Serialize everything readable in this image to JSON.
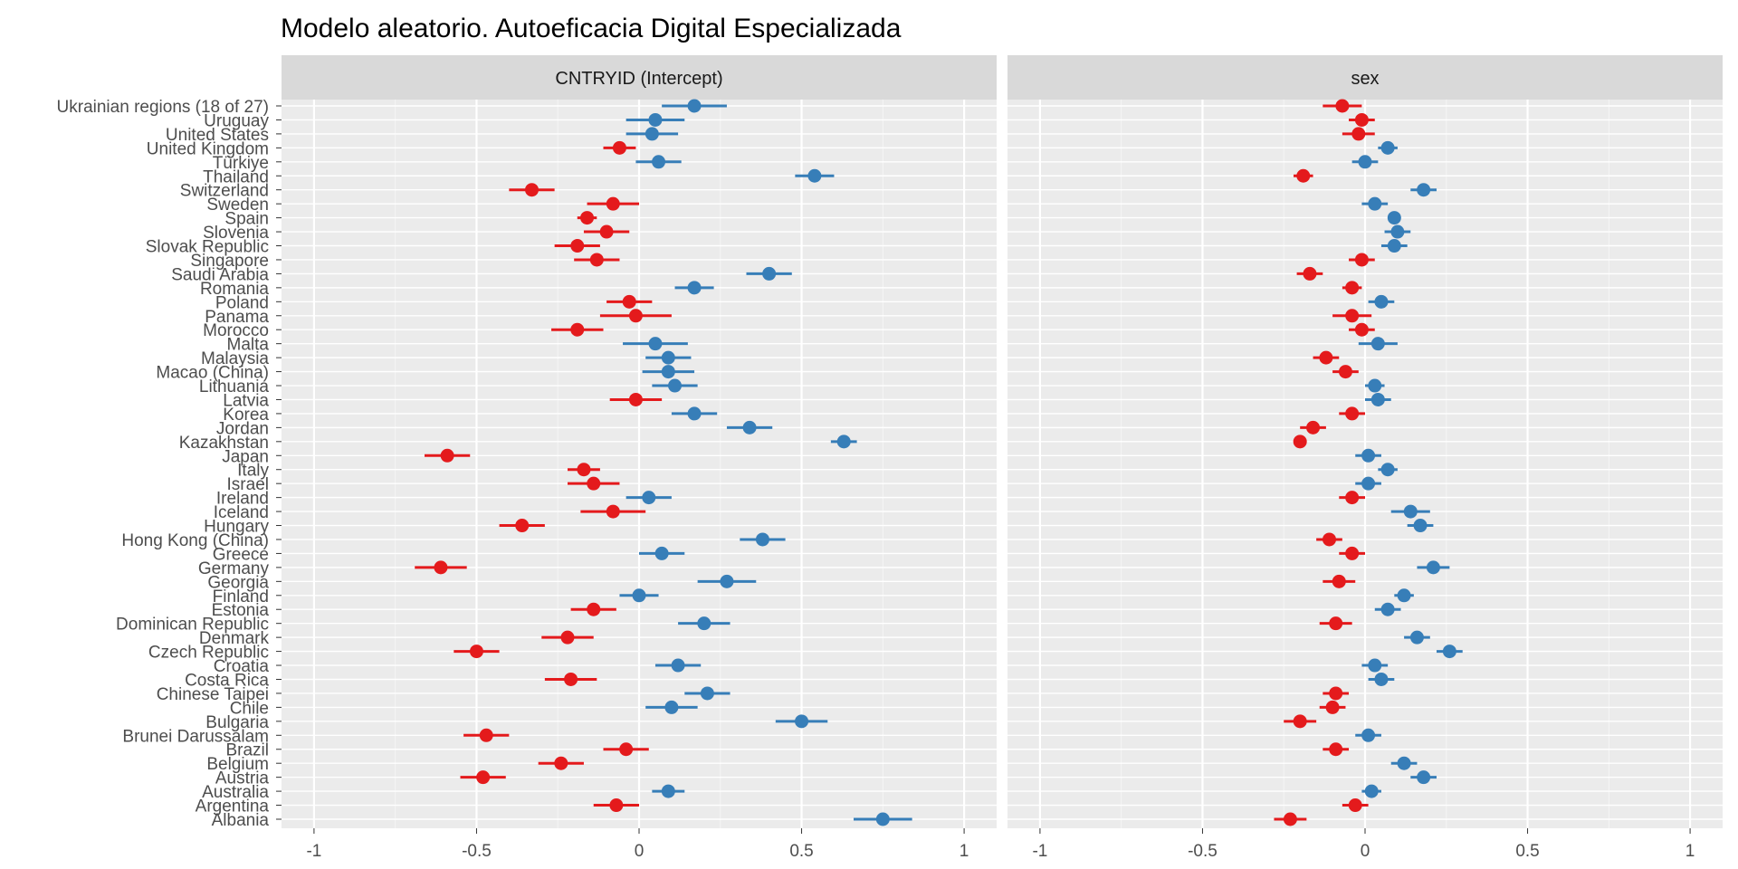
{
  "chart_data": {
    "type": "scatter",
    "title": "Modelo aleatorio. Autoeficacia Digital Especializada",
    "colors": {
      "negative": "#E41A1C",
      "positive": "#377EB8",
      "panel_bg": "#EBEBEB",
      "strip_bg": "#D9D9D9",
      "grid": "#FFFFFF",
      "text": "#4D4D4D"
    },
    "categories": [
      "Ukrainian regions (18 of 27)",
      "Uruguay",
      "United States",
      "United Kingdom",
      "Türkiye",
      "Thailand",
      "Switzerland",
      "Sweden",
      "Spain",
      "Slovenia",
      "Slovak Republic",
      "Singapore",
      "Saudi Arabia",
      "Romania",
      "Poland",
      "Panama",
      "Morocco",
      "Malta",
      "Malaysia",
      "Macao (China)",
      "Lithuania",
      "Latvia",
      "Korea",
      "Jordan",
      "Kazakhstan",
      "Japan",
      "Italy",
      "Israel",
      "Ireland",
      "Iceland",
      "Hungary",
      "Hong Kong (China)",
      "Greece",
      "Germany",
      "Georgia",
      "Finland",
      "Estonia",
      "Dominican Republic",
      "Denmark",
      "Czech Republic",
      "Croatia",
      "Costa Rica",
      "Chinese Taipei",
      "Chile",
      "Bulgaria",
      "Brunei Darussalam",
      "Brazil",
      "Belgium",
      "Austria",
      "Australia",
      "Argentina",
      "Albania"
    ],
    "xlim": [
      -1.1,
      1.1
    ],
    "xticks": [
      "-1",
      "-0.5",
      "0",
      "0.5",
      "1"
    ],
    "xtick_values": [
      -1,
      -0.5,
      0,
      0.5,
      1
    ],
    "panels": [
      {
        "name": "CNTRYID (Intercept)",
        "values": [
          0.17,
          0.05,
          0.04,
          -0.06,
          0.06,
          0.54,
          -0.33,
          -0.08,
          -0.16,
          -0.1,
          -0.19,
          -0.13,
          0.4,
          0.17,
          -0.03,
          -0.01,
          -0.19,
          0.05,
          0.09,
          0.09,
          0.11,
          -0.01,
          0.17,
          0.34,
          0.63,
          -0.59,
          -0.17,
          -0.14,
          0.03,
          -0.08,
          -0.36,
          0.38,
          0.07,
          -0.61,
          0.27,
          0.0,
          -0.14,
          0.2,
          -0.22,
          -0.5,
          0.12,
          -0.21,
          0.21,
          0.1,
          0.5,
          -0.47,
          -0.04,
          -0.24,
          -0.48,
          0.09,
          -0.07,
          0.75
        ],
        "errors": [
          0.1,
          0.09,
          0.08,
          0.05,
          0.07,
          0.06,
          0.07,
          0.08,
          0.03,
          0.07,
          0.07,
          0.07,
          0.07,
          0.06,
          0.07,
          0.11,
          0.08,
          0.1,
          0.07,
          0.08,
          0.07,
          0.08,
          0.07,
          0.07,
          0.04,
          0.07,
          0.05,
          0.08,
          0.07,
          0.1,
          0.07,
          0.07,
          0.07,
          0.08,
          0.09,
          0.06,
          0.07,
          0.08,
          0.08,
          0.07,
          0.07,
          0.08,
          0.07,
          0.08,
          0.08,
          0.07,
          0.07,
          0.07,
          0.07,
          0.05,
          0.07,
          0.09
        ]
      },
      {
        "name": "sex",
        "values": [
          -0.07,
          -0.01,
          -0.02,
          0.07,
          0.0,
          -0.19,
          0.18,
          0.03,
          0.09,
          0.1,
          0.09,
          -0.01,
          -0.17,
          -0.04,
          0.05,
          -0.04,
          -0.01,
          0.04,
          -0.12,
          -0.06,
          0.03,
          0.04,
          -0.04,
          -0.16,
          -0.2,
          0.01,
          0.07,
          0.01,
          -0.04,
          0.14,
          0.17,
          -0.11,
          -0.04,
          0.21,
          -0.08,
          0.12,
          0.07,
          -0.09,
          0.16,
          0.26,
          0.03,
          0.05,
          -0.09,
          -0.1,
          -0.2,
          0.01,
          -0.09,
          0.12,
          0.18,
          0.02,
          -0.03,
          -0.23
        ],
        "errors": [
          0.06,
          0.04,
          0.05,
          0.03,
          0.04,
          0.03,
          0.04,
          0.04,
          0.02,
          0.04,
          0.04,
          0.04,
          0.04,
          0.03,
          0.04,
          0.06,
          0.04,
          0.06,
          0.04,
          0.04,
          0.03,
          0.04,
          0.04,
          0.04,
          0.02,
          0.04,
          0.03,
          0.04,
          0.04,
          0.06,
          0.04,
          0.04,
          0.04,
          0.05,
          0.05,
          0.03,
          0.04,
          0.05,
          0.04,
          0.04,
          0.04,
          0.04,
          0.04,
          0.04,
          0.05,
          0.04,
          0.04,
          0.04,
          0.04,
          0.03,
          0.04,
          0.05
        ]
      }
    ]
  }
}
